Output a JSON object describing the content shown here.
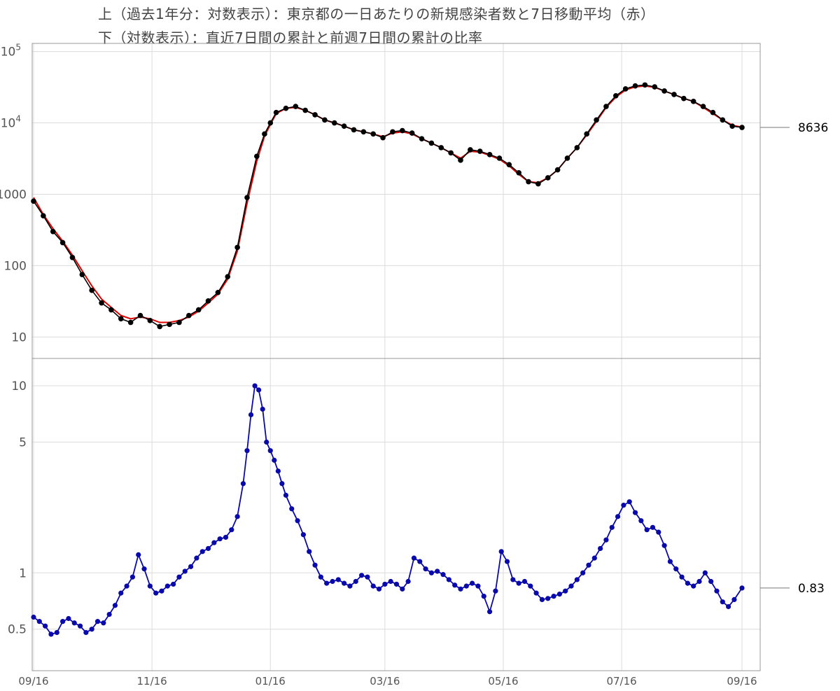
{
  "titles": {
    "line1": "上（過去1年分：対数表示）：東京都の一日あたりの新規感染者数と7日移動平均（赤）",
    "line2": "下（対数表示）：直近7日間の累計と前週7日間の累計の比率"
  },
  "colors": {
    "daily_points": "#000000",
    "moving_average": "#e00000",
    "ratio": "#0a0aaa",
    "grid": "#dcdcdc",
    "frame": "#999999"
  },
  "chart_data": [
    {
      "type": "line",
      "scale": "log",
      "xlim_days": [
        0,
        365
      ],
      "ylim": [
        5,
        130000
      ],
      "x_ticks": [
        "09/16",
        "11/16",
        "01/16",
        "03/16",
        "05/16",
        "07/16",
        "09/16"
      ],
      "x_tick_days": [
        0,
        61,
        122,
        181,
        242,
        303,
        365
      ],
      "y_ticks": [
        {
          "value": 10,
          "label": "10"
        },
        {
          "value": 100,
          "label": "100"
        },
        {
          "value": 1000,
          "label": "1000"
        },
        {
          "value": 10000,
          "label": "10",
          "exp": "4"
        },
        {
          "value": 100000,
          "label": "10",
          "exp": "5"
        }
      ],
      "grid": true,
      "last_value_label": "8636",
      "last_value": 8636,
      "series": [
        {
          "role": "daily",
          "x": [
            0,
            5,
            10,
            15,
            20,
            25,
            30,
            35,
            40,
            45,
            50,
            55,
            60,
            65,
            70,
            75,
            80,
            85,
            90,
            95,
            100,
            105,
            110,
            115,
            119,
            122,
            125,
            130,
            135,
            140,
            145,
            150,
            155,
            160,
            165,
            170,
            175,
            180,
            185,
            190,
            195,
            200,
            205,
            210,
            215,
            220,
            225,
            230,
            235,
            240,
            245,
            250,
            255,
            260,
            265,
            270,
            275,
            280,
            285,
            290,
            295,
            300,
            305,
            310,
            315,
            320,
            325,
            330,
            335,
            340,
            345,
            350,
            355,
            360,
            365
          ],
          "y": [
            800,
            500,
            300,
            210,
            130,
            75,
            45,
            30,
            24,
            18,
            16,
            20,
            17,
            14,
            15,
            16,
            20,
            24,
            32,
            42,
            70,
            180,
            900,
            3400,
            7000,
            10000,
            14000,
            16000,
            17000,
            15000,
            13000,
            11000,
            10000,
            9000,
            8000,
            7500,
            7000,
            6200,
            7500,
            7800,
            7200,
            6000,
            5200,
            4500,
            3800,
            3000,
            4200,
            4000,
            3600,
            3200,
            2600,
            2000,
            1500,
            1400,
            1700,
            2200,
            3200,
            4500,
            7000,
            11000,
            17000,
            24000,
            30000,
            33000,
            34000,
            32000,
            28000,
            25000,
            22000,
            20000,
            17000,
            14000,
            11000,
            9000,
            8636
          ]
        },
        {
          "role": "7-day moving average",
          "x": [
            0,
            5,
            10,
            15,
            20,
            25,
            30,
            35,
            40,
            45,
            50,
            55,
            60,
            65,
            70,
            75,
            80,
            85,
            90,
            95,
            100,
            105,
            110,
            115,
            119,
            122,
            125,
            130,
            135,
            140,
            145,
            150,
            155,
            160,
            165,
            170,
            175,
            180,
            185,
            190,
            195,
            200,
            205,
            210,
            215,
            220,
            225,
            230,
            235,
            240,
            245,
            250,
            255,
            260,
            265,
            270,
            275,
            280,
            285,
            290,
            295,
            300,
            305,
            310,
            315,
            320,
            325,
            330,
            335,
            340,
            345,
            350,
            355,
            360,
            365
          ],
          "y": [
            900,
            520,
            330,
            220,
            140,
            85,
            52,
            34,
            26,
            20,
            18,
            19,
            18,
            16,
            16,
            17,
            19,
            23,
            30,
            40,
            65,
            160,
            750,
            2900,
            6500,
            9500,
            13500,
            16000,
            16500,
            15000,
            13000,
            11000,
            10000,
            9000,
            8000,
            7500,
            7000,
            6400,
            7200,
            7500,
            7000,
            6000,
            5200,
            4500,
            3800,
            3200,
            4000,
            3900,
            3500,
            3100,
            2500,
            1900,
            1500,
            1450,
            1700,
            2200,
            3200,
            4500,
            6800,
            10500,
            16500,
            23000,
            29000,
            32000,
            33000,
            31500,
            28000,
            25000,
            22000,
            20000,
            16500,
            13500,
            11000,
            9300,
            8700
          ]
        }
      ]
    },
    {
      "type": "line",
      "scale": "log",
      "xlim_days": [
        0,
        365
      ],
      "ylim": [
        0.3,
        14
      ],
      "y_ticks": [
        {
          "value": 0.5,
          "label": "0.5"
        },
        {
          "value": 1,
          "label": "1"
        },
        {
          "value": 5,
          "label": "5"
        },
        {
          "value": 10,
          "label": "10"
        }
      ],
      "grid": true,
      "last_value_label": "0.83",
      "last_value": 0.83,
      "series": [
        {
          "role": "ratio",
          "x": [
            0,
            3,
            6,
            9,
            12,
            15,
            18,
            21,
            24,
            27,
            30,
            33,
            36,
            39,
            42,
            45,
            48,
            51,
            54,
            57,
            60,
            63,
            66,
            69,
            72,
            75,
            78,
            81,
            84,
            87,
            90,
            93,
            96,
            99,
            102,
            105,
            108,
            110,
            112,
            114,
            116,
            118,
            120,
            122,
            124,
            126,
            128,
            130,
            133,
            136,
            139,
            142,
            145,
            148,
            151,
            154,
            157,
            160,
            163,
            166,
            169,
            172,
            175,
            178,
            181,
            184,
            187,
            190,
            193,
            196,
            199,
            202,
            205,
            208,
            211,
            214,
            217,
            220,
            223,
            226,
            229,
            232,
            235,
            238,
            241,
            244,
            247,
            250,
            253,
            256,
            259,
            262,
            265,
            268,
            271,
            274,
            277,
            280,
            283,
            286,
            289,
            292,
            295,
            298,
            301,
            304,
            307,
            310,
            313,
            316,
            319,
            322,
            325,
            328,
            331,
            334,
            337,
            340,
            343,
            346,
            349,
            352,
            355,
            358,
            361,
            365
          ],
          "y": [
            0.58,
            0.55,
            0.52,
            0.47,
            0.48,
            0.55,
            0.57,
            0.54,
            0.52,
            0.48,
            0.5,
            0.55,
            0.54,
            0.6,
            0.67,
            0.78,
            0.85,
            0.95,
            1.25,
            1.05,
            0.85,
            0.78,
            0.8,
            0.85,
            0.87,
            0.95,
            1.02,
            1.08,
            1.2,
            1.3,
            1.35,
            1.45,
            1.52,
            1.55,
            1.7,
            2.0,
            3.0,
            4.5,
            7.0,
            10.0,
            9.5,
            7.5,
            5.0,
            4.5,
            4.0,
            3.5,
            3.0,
            2.6,
            2.2,
            1.9,
            1.6,
            1.3,
            1.1,
            0.95,
            0.88,
            0.9,
            0.92,
            0.88,
            0.85,
            0.9,
            0.97,
            0.95,
            0.85,
            0.82,
            0.87,
            0.9,
            0.87,
            0.82,
            0.9,
            1.2,
            1.15,
            1.05,
            1.0,
            1.02,
            0.98,
            0.92,
            0.86,
            0.82,
            0.85,
            0.88,
            0.85,
            0.75,
            0.62,
            0.8,
            1.3,
            1.15,
            0.92,
            0.88,
            0.9,
            0.85,
            0.78,
            0.72,
            0.73,
            0.75,
            0.77,
            0.8,
            0.85,
            0.92,
            1.0,
            1.1,
            1.2,
            1.35,
            1.5,
            1.75,
            2.0,
            2.3,
            2.4,
            2.1,
            1.9,
            1.7,
            1.75,
            1.65,
            1.4,
            1.15,
            1.05,
            0.95,
            0.88,
            0.85,
            0.9,
            1.0,
            0.9,
            0.8,
            0.7,
            0.66,
            0.72,
            0.83
          ]
        }
      ]
    }
  ]
}
